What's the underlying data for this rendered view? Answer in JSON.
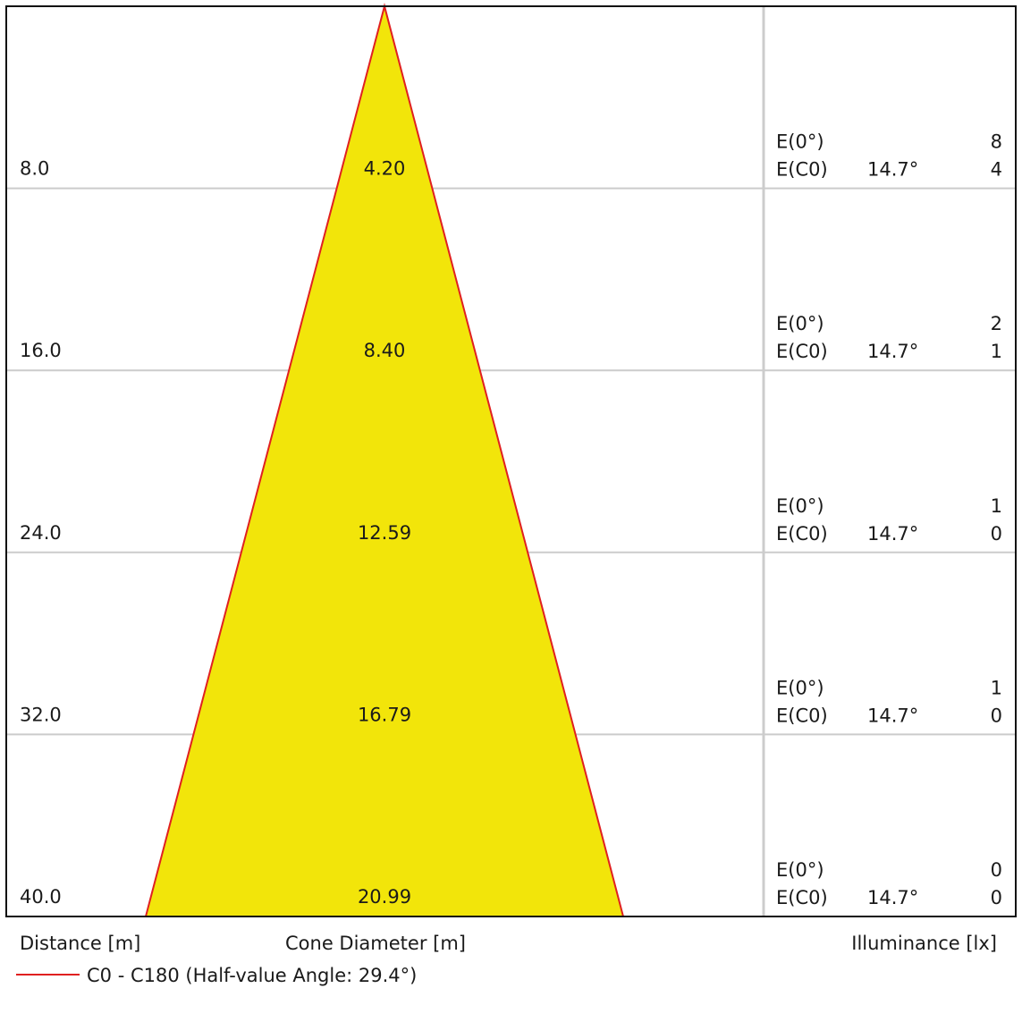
{
  "chart_data": {
    "type": "cone-diagram",
    "xlabel_left": "Distance [m]",
    "xlabel_center": "Cone Diameter [m]",
    "xlabel_right": "Illuminance [lx]",
    "legend": {
      "label": "C0 - C180 (Half-value Angle: 29.4°)",
      "color": "#e02020",
      "placement": "bottom-left"
    },
    "fill_color": "#f2e50a",
    "max_distance": 40,
    "e0_label": "E(0°)",
    "ec0_label": "E(C0)",
    "rows": [
      {
        "distance": "8.0",
        "diameter": "4.20",
        "e0": "8",
        "ec0": "4",
        "angle": "14.7°"
      },
      {
        "distance": "16.0",
        "diameter": "8.40",
        "e0": "2",
        "ec0": "1",
        "angle": "14.7°"
      },
      {
        "distance": "24.0",
        "diameter": "12.59",
        "e0": "1",
        "ec0": "0",
        "angle": "14.7°"
      },
      {
        "distance": "32.0",
        "diameter": "16.79",
        "e0": "1",
        "ec0": "0",
        "angle": "14.7°"
      },
      {
        "distance": "40.0",
        "diameter": "20.99",
        "e0": "0",
        "ec0": "0",
        "angle": "14.7°"
      }
    ]
  }
}
